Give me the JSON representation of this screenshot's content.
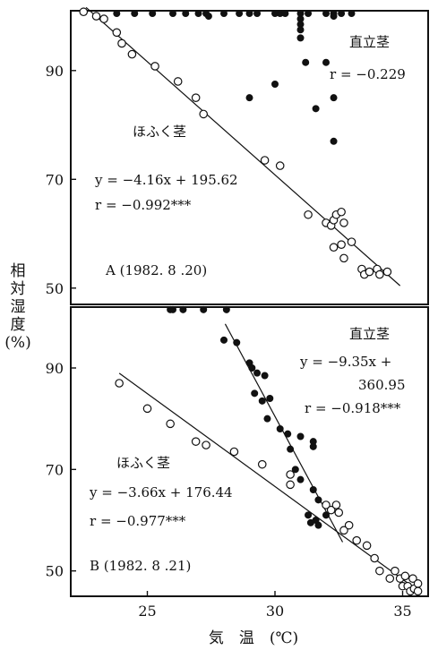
{
  "chart_data": [
    {
      "type": "scatter",
      "panel_label": "A (1982. 8 .20)",
      "xlim": [
        22,
        36
      ],
      "ylim": [
        47,
        101
      ],
      "y_ticks": [
        50,
        70,
        90
      ],
      "y_tick_labels": [
        "50",
        "70",
        "90"
      ],
      "series": [
        {
          "name": "直立茎",
          "marker": "filled",
          "regression": null,
          "annotation": [
            "直立茎",
            "r = −0.229"
          ],
          "points": [
            [
              23.8,
              100.5
            ],
            [
              24.5,
              100.5
            ],
            [
              25.2,
              100.5
            ],
            [
              26.0,
              100.5
            ],
            [
              26.5,
              100.5
            ],
            [
              27.0,
              100.5
            ],
            [
              27.3,
              100.5
            ],
            [
              28.0,
              100.5
            ],
            [
              28.6,
              100.5
            ],
            [
              29.0,
              100.5
            ],
            [
              29.3,
              100.5
            ],
            [
              30.0,
              100.5
            ],
            [
              30.2,
              100.5
            ],
            [
              30.4,
              100.5
            ],
            [
              31.0,
              100.5
            ],
            [
              31.3,
              100.5
            ],
            [
              32.0,
              100.5
            ],
            [
              32.3,
              100.5
            ],
            [
              32.6,
              100.5
            ],
            [
              33.0,
              100.5
            ],
            [
              27.4,
              100.0
            ],
            [
              31.0,
              99.5
            ],
            [
              31.0,
              98.5
            ],
            [
              31.0,
              97.5
            ],
            [
              31.0,
              96.0
            ],
            [
              31.2,
              91.5
            ],
            [
              32.0,
              91.5
            ],
            [
              32.3,
              100.0
            ],
            [
              32.3,
              85.0
            ],
            [
              29.0,
              85.0
            ],
            [
              30.0,
              87.5
            ],
            [
              31.6,
              83.0
            ],
            [
              32.3,
              77.0
            ]
          ]
        },
        {
          "name": "ほふく茎",
          "marker": "open",
          "regression": {
            "slope": -4.16,
            "intercept": 195.62,
            "x_range": [
              22.6,
              34.9
            ]
          },
          "annotation": [
            "ほふく茎",
            "y = −4.16x + 195.62",
            "r = −0.992***"
          ],
          "points": [
            [
              22.5,
              100.8
            ],
            [
              23.0,
              100.0
            ],
            [
              23.3,
              99.5
            ],
            [
              23.8,
              97.0
            ],
            [
              24.0,
              95.0
            ],
            [
              24.4,
              93.0
            ],
            [
              25.3,
              90.8
            ],
            [
              26.2,
              88.0
            ],
            [
              26.9,
              85.0
            ],
            [
              27.2,
              82.0
            ],
            [
              29.6,
              73.5
            ],
            [
              30.2,
              72.5
            ],
            [
              31.3,
              63.5
            ],
            [
              32.0,
              62.0
            ],
            [
              32.2,
              61.5
            ],
            [
              32.3,
              62.5
            ],
            [
              32.4,
              63.5
            ],
            [
              32.6,
              64.0
            ],
            [
              32.7,
              62.0
            ],
            [
              32.3,
              57.5
            ],
            [
              32.6,
              58.0
            ],
            [
              32.7,
              55.5
            ],
            [
              33.0,
              58.5
            ],
            [
              33.4,
              53.5
            ],
            [
              33.5,
              52.5
            ],
            [
              33.7,
              53.0
            ],
            [
              34.0,
              53.5
            ],
            [
              34.1,
              52.5
            ],
            [
              34.4,
              53.0
            ]
          ]
        }
      ]
    },
    {
      "type": "scatter",
      "panel_label": "B (1982. 8 .21)",
      "xlim": [
        22,
        36
      ],
      "ylim": [
        45,
        102
      ],
      "x_ticks": [
        25,
        30,
        35
      ],
      "x_tick_labels": [
        "25",
        "30",
        "35"
      ],
      "y_ticks": [
        50,
        70,
        90
      ],
      "y_tick_labels": [
        "50",
        "70",
        "90"
      ],
      "series": [
        {
          "name": "直立茎",
          "marker": "filled",
          "regression": {
            "slope": -9.35,
            "intercept": 360.95,
            "x_range": [
              28.05,
              32.65
            ]
          },
          "annotation": [
            "直立茎",
            "y = −9.35x +",
            "360.95",
            "r = −0.918***"
          ],
          "points": [
            [
              25.9,
              101.5
            ],
            [
              26.0,
              101.5
            ],
            [
              26.4,
              101.5
            ],
            [
              27.2,
              101.5
            ],
            [
              28.1,
              101.5
            ],
            [
              28.0,
              95.5
            ],
            [
              28.5,
              95.0
            ],
            [
              29.0,
              91.0
            ],
            [
              29.1,
              90.0
            ],
            [
              29.3,
              89.0
            ],
            [
              29.6,
              88.5
            ],
            [
              29.2,
              85.0
            ],
            [
              29.5,
              83.5
            ],
            [
              29.8,
              84.0
            ],
            [
              29.7,
              80.0
            ],
            [
              30.2,
              78.0
            ],
            [
              30.5,
              77.0
            ],
            [
              31.0,
              76.5
            ],
            [
              31.5,
              75.5
            ],
            [
              30.6,
              74.0
            ],
            [
              31.5,
              74.5
            ],
            [
              30.8,
              70.0
            ],
            [
              31.0,
              68.0
            ],
            [
              30.6,
              67.0
            ],
            [
              31.5,
              66.0
            ],
            [
              31.7,
              64.0
            ],
            [
              32.0,
              61.0
            ],
            [
              31.3,
              61.0
            ],
            [
              31.6,
              60.0
            ],
            [
              31.4,
              59.5
            ],
            [
              31.7,
              59.0
            ]
          ]
        },
        {
          "name": "ほふく茎",
          "marker": "open",
          "regression": {
            "slope": -3.66,
            "intercept": 176.44,
            "x_range": [
              23.9,
              35.4
            ]
          },
          "annotation": [
            "ほふく茎",
            "y = −3.66x + 176.44",
            "r = −0.977***"
          ],
          "points": [
            [
              23.9,
              87.0
            ],
            [
              25.0,
              82.0
            ],
            [
              25.9,
              79.0
            ],
            [
              26.9,
              75.5
            ],
            [
              27.3,
              74.8
            ],
            [
              28.4,
              73.5
            ],
            [
              29.5,
              71.0
            ],
            [
              30.6,
              69.0
            ],
            [
              30.6,
              67.0
            ],
            [
              32.0,
              63.0
            ],
            [
              32.2,
              62.0
            ],
            [
              32.4,
              63.0
            ],
            [
              32.5,
              61.5
            ],
            [
              32.7,
              58.0
            ],
            [
              32.9,
              59.0
            ],
            [
              33.2,
              56.0
            ],
            [
              33.6,
              55.0
            ],
            [
              33.9,
              52.5
            ],
            [
              34.1,
              50.0
            ],
            [
              34.5,
              48.5
            ],
            [
              34.7,
              50.0
            ],
            [
              34.9,
              48.5
            ],
            [
              35.0,
              47.0
            ],
            [
              35.1,
              49.0
            ],
            [
              35.2,
              47.0
            ],
            [
              35.3,
              46.0
            ],
            [
              35.4,
              48.5
            ],
            [
              35.45,
              46.5
            ],
            [
              35.6,
              47.5
            ],
            [
              35.6,
              46.0
            ]
          ]
        }
      ]
    }
  ],
  "axes": {
    "y_label_chars": [
      "相",
      "対",
      "湿",
      "度",
      "(%)"
    ],
    "x_label": "気　温　(℃)"
  }
}
